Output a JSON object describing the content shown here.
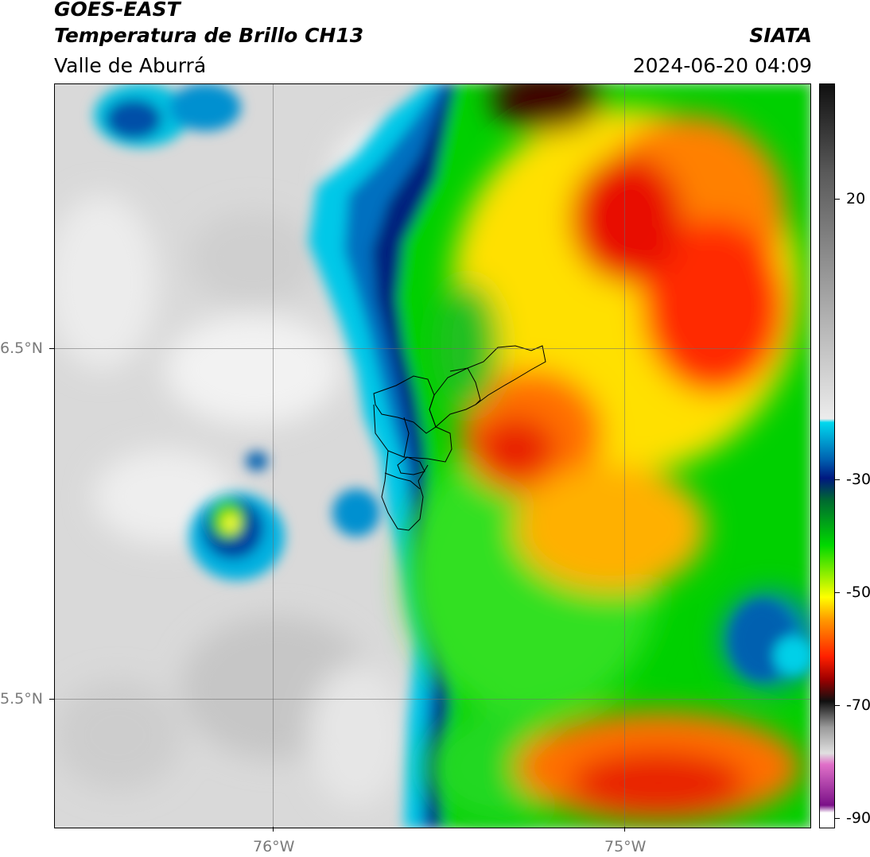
{
  "header": {
    "satellite": "GOES-EAST",
    "product": "Temperatura de Brillo CH13",
    "region": "Valle de Aburrá",
    "organization": "SIATA",
    "datetime": "2024-06-20 04:09"
  },
  "map": {
    "lon_labels": [
      "76°W",
      "75°W"
    ],
    "lat_labels": [
      "6.5°N",
      "5.5°N"
    ]
  },
  "colorbar": {
    "tick_labels": [
      "20",
      "-30",
      "-50",
      "-70",
      "-90"
    ],
    "stops": [
      "#101010",
      "#5a5a5a",
      "#b8b8b8",
      "#ececec",
      "#00d8ee",
      "#0060b0",
      "#001880",
      "#006a30",
      "#00d800",
      "#ffff00",
      "#ff9a00",
      "#ff2000",
      "#a00000",
      "#101010",
      "#9a9a9a",
      "#e0e0e0",
      "#e070c8",
      "#7a1088",
      "#ffffff"
    ]
  }
}
